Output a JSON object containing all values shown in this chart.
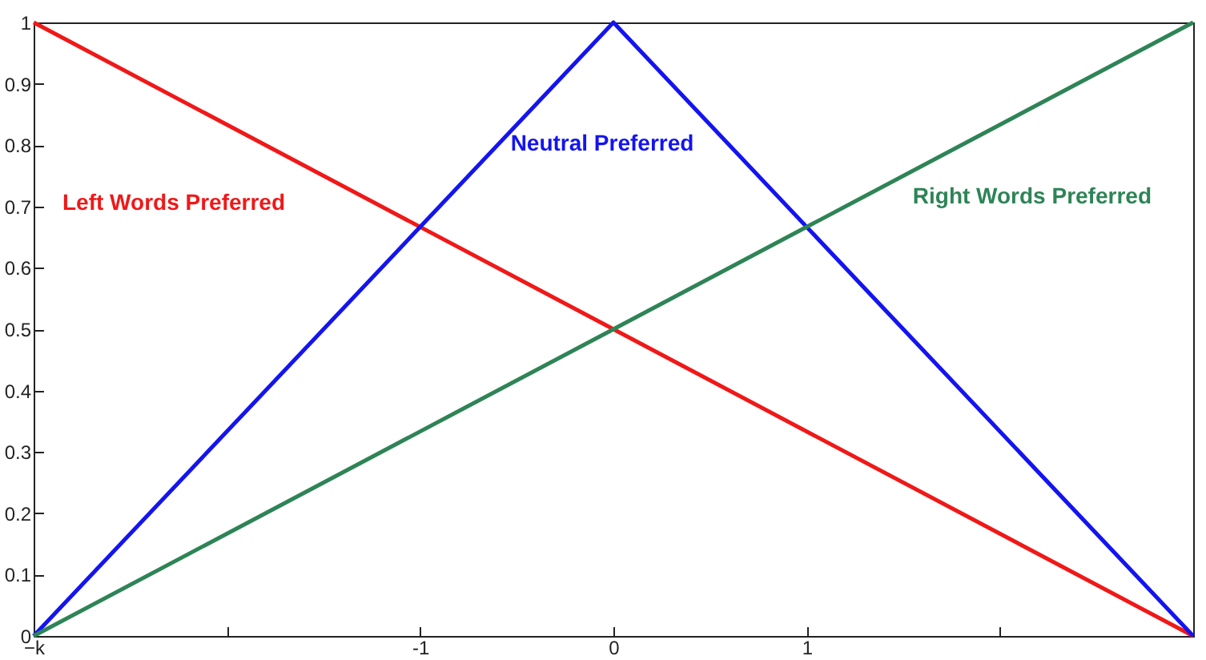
{
  "chart_data": {
    "type": "line",
    "x": [
      -3,
      0,
      3
    ],
    "series": [
      {
        "name": "Left  Words Preferred",
        "color": "#f01818",
        "values": [
          1,
          0.5,
          0
        ]
      },
      {
        "name": "Neutral Preferred",
        "color": "#1414f0",
        "values": [
          0,
          1,
          0
        ]
      },
      {
        "name": "Right Words Preferred",
        "color": "#2e8456",
        "values": [
          0,
          0.5,
          1
        ]
      }
    ],
    "xlim": [
      -3,
      3
    ],
    "xticks": [
      {
        "value": -3,
        "label": "−k"
      },
      {
        "value": -2,
        "label": null
      },
      -1,
      0,
      1,
      {
        "value": 2,
        "label": null
      },
      {
        "value": 3,
        "label": null
      }
    ],
    "ylim": [
      0,
      1
    ],
    "yticks": [
      0,
      0.1,
      0.2,
      0.3,
      0.4,
      0.5,
      0.6,
      0.7,
      0.8,
      0.9,
      1
    ],
    "grid": false
  }
}
